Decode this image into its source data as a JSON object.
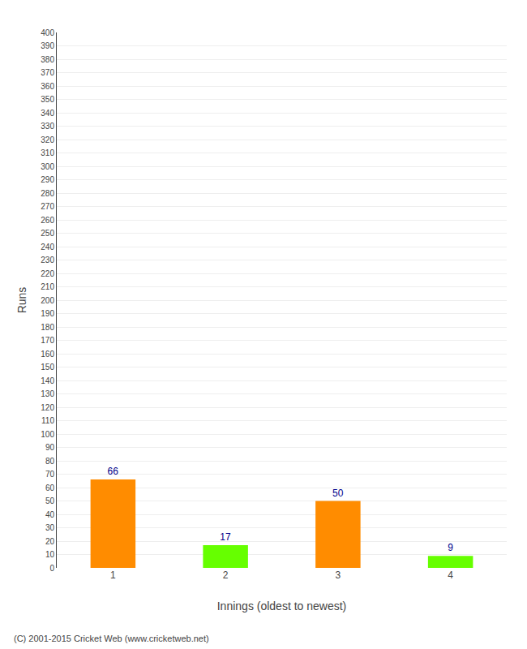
{
  "chart_data": {
    "type": "bar",
    "categories": [
      "1",
      "2",
      "3",
      "4"
    ],
    "values": [
      66,
      17,
      50,
      9
    ],
    "colors": [
      "#FF8C00",
      "#66FF00",
      "#FF8C00",
      "#66FF00"
    ],
    "xlabel": "Innings (oldest to newest)",
    "ylabel": "Runs",
    "ylim": [
      0,
      400
    ],
    "yticks": [
      0,
      10,
      20,
      30,
      40,
      50,
      60,
      70,
      80,
      90,
      100,
      110,
      120,
      130,
      140,
      150,
      160,
      170,
      180,
      190,
      200,
      210,
      220,
      230,
      240,
      250,
      260,
      270,
      280,
      290,
      300,
      310,
      320,
      330,
      340,
      350,
      360,
      370,
      380,
      390,
      400
    ],
    "grid": true,
    "data_labels": true,
    "annotations": [
      "(C) 2001-2015 Cricket Web (www.cricketweb.net)"
    ]
  }
}
